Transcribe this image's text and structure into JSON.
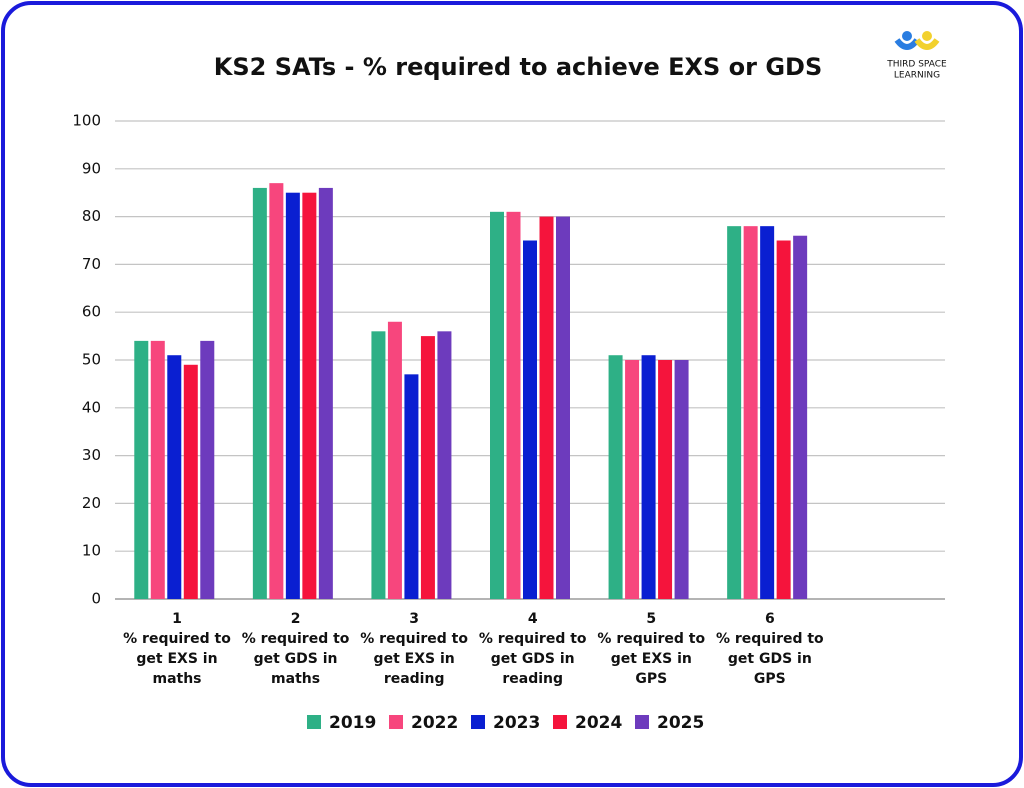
{
  "chart_data": {
    "type": "bar",
    "title": "KS2 SATs - % required to achieve EXS or GDS",
    "logo": [
      "THIRD SPACE",
      "LEARNING"
    ],
    "categories": [
      "1",
      "2",
      "3",
      "4",
      "5",
      "6",
      null
    ],
    "category_descriptions": [
      "% required to get EXS in maths",
      "% required to get GDS in maths",
      "% required to get EXS in reading",
      "% required to get GDS in reading",
      "% required to get EXS in GPS",
      "% required to get GDS in GPS",
      null
    ],
    "series": [
      {
        "name": "2019",
        "color": "#2eb086",
        "values": [
          54,
          86,
          56,
          81,
          51,
          78,
          null
        ]
      },
      {
        "name": "2022",
        "color": "#f7467d",
        "values": [
          54,
          87,
          58,
          81,
          50,
          78,
          null
        ]
      },
      {
        "name": "2023",
        "color": "#0a1fd1",
        "values": [
          51,
          85,
          47,
          75,
          51,
          78,
          null
        ]
      },
      {
        "name": "2024",
        "color": "#f5143c",
        "values": [
          49,
          85,
          55,
          80,
          50,
          75,
          null
        ]
      },
      {
        "name": "2025",
        "color": "#6d3bbd",
        "values": [
          54,
          86,
          56,
          80,
          50,
          76,
          null
        ]
      }
    ],
    "ylim": [
      0,
      100
    ],
    "yticks": [
      0,
      10,
      20,
      30,
      40,
      50,
      60,
      70,
      80,
      90,
      100
    ],
    "grid": true,
    "legend": "bottom"
  }
}
